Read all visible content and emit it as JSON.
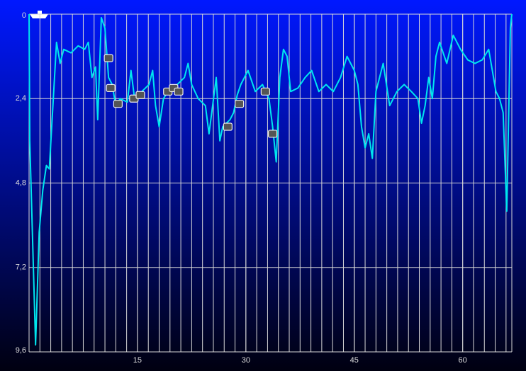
{
  "chart_data": {
    "type": "line",
    "x": [
      0,
      0.1,
      0.9,
      1.4,
      1.9,
      2.4,
      2.8,
      3.3,
      3.8,
      4.3,
      4.8,
      5.8,
      6.8,
      7.7,
      8.2,
      8.7,
      9.2,
      9.5,
      10.0,
      10.5,
      11.0,
      11.5,
      12.0,
      12.6,
      13.6,
      14.1,
      14.6,
      15.6,
      16.6,
      17.1,
      17.5,
      18.0,
      18.6,
      19.5,
      20.5,
      21.5,
      22.0,
      22.5,
      23.4,
      24.4,
      24.9,
      25.4,
      25.9,
      26.4,
      26.8,
      27.8,
      28.3,
      28.8,
      29.3,
      30.3,
      31.3,
      32.3,
      33.2,
      33.7,
      34.2,
      34.7,
      35.2,
      35.7,
      36.2,
      37.2,
      38.2,
      39.1,
      40.1,
      41.1,
      42.1,
      43.1,
      44.0,
      45.0,
      45.5,
      46.0,
      46.5,
      47.0,
      47.5,
      48.0,
      49.0,
      49.9,
      50.9,
      51.9,
      52.9,
      53.8,
      54.3,
      54.8,
      55.3,
      55.8,
      56.3,
      56.8,
      57.8,
      58.7,
      59.7,
      60.7,
      61.7,
      62.7,
      63.6,
      64.1,
      64.6,
      65.1,
      65.6,
      66.1,
      66.6,
      66.8
    ],
    "series": [
      {
        "color": "#00e5ee",
        "values": [
          0,
          3.6,
          9.4,
          6.2,
          5.0,
          4.3,
          4.4,
          2.6,
          0.8,
          1.4,
          1.0,
          1.1,
          0.9,
          1.0,
          0.8,
          1.8,
          1.5,
          3.0,
          0.1,
          0.4,
          1.8,
          2.0,
          2.6,
          2.4,
          2.5,
          1.6,
          2.4,
          2.2,
          2.0,
          1.6,
          2.6,
          3.2,
          2.4,
          2.1,
          2.0,
          1.8,
          1.4,
          2.0,
          2.4,
          2.6,
          3.4,
          2.6,
          1.8,
          3.6,
          3.2,
          3.0,
          2.8,
          2.3,
          2.0,
          1.6,
          2.2,
          2.0,
          2.4,
          3.2,
          4.2,
          1.8,
          1.0,
          1.2,
          2.2,
          2.1,
          1.8,
          1.6,
          2.2,
          2.0,
          2.2,
          1.8,
          1.2,
          1.6,
          2.0,
          3.2,
          3.8,
          3.4,
          4.1,
          2.2,
          1.4,
          2.6,
          2.2,
          2.0,
          2.2,
          2.4,
          3.1,
          2.6,
          1.8,
          2.4,
          1.2,
          0.8,
          1.4,
          0.6,
          1.0,
          1.3,
          1.4,
          1.3,
          1.0,
          1.6,
          2.2,
          2.4,
          2.8,
          5.6,
          0.4,
          0
        ]
      }
    ],
    "markers": {
      "x": [
        11.0,
        11.3,
        12.3,
        14.5,
        15.4,
        19.2,
        20.0,
        20.7,
        27.5,
        29.1,
        32.7,
        33.7
      ],
      "values": [
        1.25,
        2.1,
        2.55,
        2.4,
        2.3,
        2.2,
        2.1,
        2.2,
        3.2,
        2.55,
        2.2,
        3.4
      ]
    },
    "xlim": [
      0,
      66.8
    ],
    "xticks": [
      15,
      30,
      45,
      60
    ],
    "x_grid_step": 1.5,
    "ylim": [
      0,
      9.6
    ],
    "y_inverted": true,
    "yticks": [
      0,
      {
        "value": 2.4,
        "label": "2,4"
      },
      {
        "value": 4.8,
        "label": "4,8"
      },
      {
        "value": 7.2,
        "label": "7,2"
      },
      {
        "value": 9.6,
        "label": "9,6"
      }
    ],
    "grid": true
  }
}
